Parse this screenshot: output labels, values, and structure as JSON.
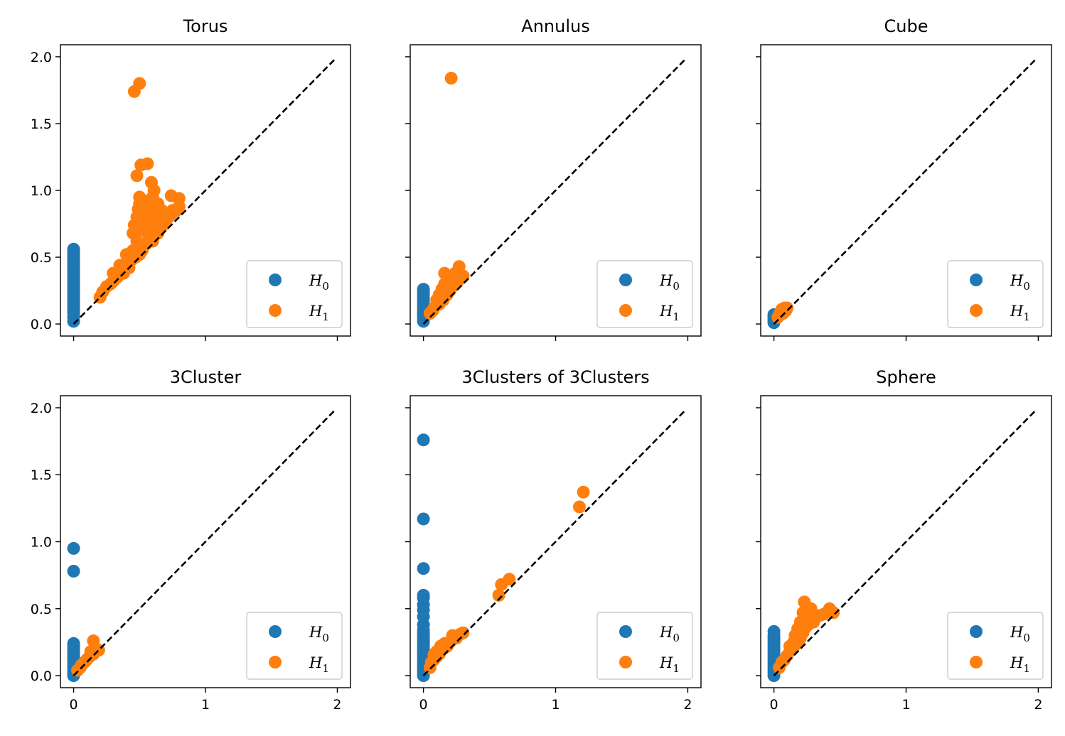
{
  "colors": {
    "h0": "#1f77b4",
    "h1": "#ff7f0e",
    "diagonal": "#000000"
  },
  "shared": {
    "xticks": [
      "0",
      "1",
      "2"
    ],
    "yticks": [
      "0.0",
      "0.5",
      "1.0",
      "1.5",
      "2.0"
    ],
    "legend": {
      "h0": "H",
      "h0_sub": "0",
      "h1": "H",
      "h1_sub": "1",
      "placement": "lower-right"
    }
  },
  "chart_data": [
    {
      "type": "scatter",
      "title": "Torus",
      "xlim": [
        -0.1,
        2.1
      ],
      "ylim": [
        -0.09,
        2.09
      ],
      "series": [
        {
          "name": "H0",
          "points": [
            [
              0,
              0.02
            ],
            [
              0,
              0.05
            ],
            [
              0,
              0.08
            ],
            [
              0,
              0.1
            ],
            [
              0,
              0.12
            ],
            [
              0,
              0.14
            ],
            [
              0,
              0.16
            ],
            [
              0,
              0.18
            ],
            [
              0,
              0.2
            ],
            [
              0,
              0.22
            ],
            [
              0,
              0.24
            ],
            [
              0,
              0.26
            ],
            [
              0,
              0.28
            ],
            [
              0,
              0.3
            ],
            [
              0,
              0.32
            ],
            [
              0,
              0.34
            ],
            [
              0,
              0.36
            ],
            [
              0,
              0.38
            ],
            [
              0,
              0.4
            ],
            [
              0,
              0.42
            ],
            [
              0,
              0.44
            ],
            [
              0,
              0.46
            ],
            [
              0,
              0.48
            ],
            [
              0,
              0.5
            ],
            [
              0,
              0.52
            ],
            [
              0,
              0.54
            ],
            [
              0,
              0.56
            ]
          ]
        },
        {
          "name": "H1",
          "points": [
            [
              0.2,
              0.2
            ],
            [
              0.22,
              0.24
            ],
            [
              0.25,
              0.28
            ],
            [
              0.28,
              0.3
            ],
            [
              0.3,
              0.32
            ],
            [
              0.3,
              0.38
            ],
            [
              0.33,
              0.35
            ],
            [
              0.35,
              0.4
            ],
            [
              0.35,
              0.44
            ],
            [
              0.38,
              0.38
            ],
            [
              0.4,
              0.45
            ],
            [
              0.4,
              0.52
            ],
            [
              0.42,
              0.42
            ],
            [
              0.42,
              0.5
            ],
            [
              0.44,
              0.48
            ],
            [
              0.45,
              0.55
            ],
            [
              0.45,
              0.68
            ],
            [
              0.46,
              0.74
            ],
            [
              0.47,
              0.5
            ],
            [
              0.48,
              0.62
            ],
            [
              0.48,
              0.8
            ],
            [
              0.49,
              0.86
            ],
            [
              0.5,
              0.52
            ],
            [
              0.5,
              0.7
            ],
            [
              0.5,
              0.9
            ],
            [
              0.5,
              0.95
            ],
            [
              0.52,
              0.55
            ],
            [
              0.52,
              0.75
            ],
            [
              0.53,
              0.85
            ],
            [
              0.55,
              0.6
            ],
            [
              0.55,
              0.72
            ],
            [
              0.55,
              0.8
            ],
            [
              0.56,
              0.92
            ],
            [
              0.57,
              0.65
            ],
            [
              0.58,
              0.7
            ],
            [
              0.58,
              0.86
            ],
            [
              0.6,
              0.62
            ],
            [
              0.6,
              0.78
            ],
            [
              0.6,
              0.95
            ],
            [
              0.61,
              1.0
            ],
            [
              0.62,
              0.7
            ],
            [
              0.62,
              0.82
            ],
            [
              0.64,
              0.68
            ],
            [
              0.64,
              0.9
            ],
            [
              0.65,
              0.76
            ],
            [
              0.66,
              0.72
            ],
            [
              0.67,
              0.85
            ],
            [
              0.68,
              0.74
            ],
            [
              0.7,
              0.78
            ],
            [
              0.72,
              0.8
            ],
            [
              0.74,
              0.82
            ],
            [
              0.75,
              0.85
            ],
            [
              0.78,
              0.85
            ],
            [
              0.8,
              0.88
            ],
            [
              0.74,
              0.96
            ],
            [
              0.8,
              0.94
            ],
            [
              0.48,
              1.11
            ],
            [
              0.51,
              1.19
            ],
            [
              0.56,
              1.2
            ],
            [
              0.59,
              1.06
            ],
            [
              0.46,
              1.74
            ],
            [
              0.5,
              1.8
            ]
          ]
        }
      ]
    },
    {
      "type": "scatter",
      "title": "Annulus",
      "xlim": [
        -0.1,
        2.1
      ],
      "ylim": [
        -0.09,
        2.09
      ],
      "series": [
        {
          "name": "H0",
          "points": [
            [
              0,
              0.02
            ],
            [
              0,
              0.04
            ],
            [
              0,
              0.06
            ],
            [
              0,
              0.08
            ],
            [
              0,
              0.1
            ],
            [
              0,
              0.12
            ],
            [
              0,
              0.14
            ],
            [
              0,
              0.16
            ],
            [
              0,
              0.18
            ],
            [
              0,
              0.2
            ],
            [
              0,
              0.22
            ],
            [
              0,
              0.24
            ],
            [
              0,
              0.26
            ]
          ]
        },
        {
          "name": "H1",
          "points": [
            [
              0.05,
              0.08
            ],
            [
              0.07,
              0.1
            ],
            [
              0.08,
              0.12
            ],
            [
              0.1,
              0.14
            ],
            [
              0.1,
              0.18
            ],
            [
              0.12,
              0.15
            ],
            [
              0.12,
              0.22
            ],
            [
              0.14,
              0.2
            ],
            [
              0.14,
              0.26
            ],
            [
              0.15,
              0.18
            ],
            [
              0.16,
              0.3
            ],
            [
              0.16,
              0.38
            ],
            [
              0.18,
              0.22
            ],
            [
              0.18,
              0.32
            ],
            [
              0.2,
              0.25
            ],
            [
              0.2,
              0.36
            ],
            [
              0.22,
              0.28
            ],
            [
              0.22,
              0.34
            ],
            [
              0.24,
              0.3
            ],
            [
              0.24,
              0.38
            ],
            [
              0.26,
              0.32
            ],
            [
              0.27,
              0.43
            ],
            [
              0.28,
              0.35
            ],
            [
              0.3,
              0.36
            ],
            [
              0.21,
              1.84
            ]
          ]
        }
      ]
    },
    {
      "type": "scatter",
      "title": "Cube",
      "xlim": [
        -0.1,
        2.1
      ],
      "ylim": [
        -0.09,
        2.09
      ],
      "series": [
        {
          "name": "H0",
          "points": [
            [
              0,
              0.01
            ],
            [
              0,
              0.02
            ],
            [
              0,
              0.03
            ],
            [
              0,
              0.04
            ],
            [
              0,
              0.05
            ],
            [
              0,
              0.06
            ],
            [
              0,
              0.07
            ]
          ]
        },
        {
          "name": "H1",
          "points": [
            [
              0.03,
              0.05
            ],
            [
              0.04,
              0.07
            ],
            [
              0.05,
              0.09
            ],
            [
              0.06,
              0.11
            ],
            [
              0.07,
              0.08
            ],
            [
              0.08,
              0.12
            ],
            [
              0.09,
              0.1
            ],
            [
              0.1,
              0.12
            ]
          ]
        }
      ]
    },
    {
      "type": "scatter",
      "title": "3Cluster",
      "xlim": [
        -0.1,
        2.1
      ],
      "ylim": [
        -0.09,
        2.09
      ],
      "series": [
        {
          "name": "H0",
          "points": [
            [
              0,
              0.0
            ],
            [
              0,
              0.02
            ],
            [
              0,
              0.04
            ],
            [
              0,
              0.06
            ],
            [
              0,
              0.08
            ],
            [
              0,
              0.1
            ],
            [
              0,
              0.12
            ],
            [
              0,
              0.14
            ],
            [
              0,
              0.16
            ],
            [
              0,
              0.18
            ],
            [
              0,
              0.2
            ],
            [
              0,
              0.22
            ],
            [
              0,
              0.24
            ],
            [
              0,
              0.78
            ],
            [
              0,
              0.95
            ]
          ]
        },
        {
          "name": "H1",
          "points": [
            [
              0.03,
              0.04
            ],
            [
              0.05,
              0.06
            ],
            [
              0.06,
              0.08
            ],
            [
              0.08,
              0.1
            ],
            [
              0.1,
              0.12
            ],
            [
              0.12,
              0.14
            ],
            [
              0.13,
              0.18
            ],
            [
              0.15,
              0.16
            ],
            [
              0.15,
              0.26
            ],
            [
              0.17,
              0.2
            ],
            [
              0.19,
              0.19
            ]
          ]
        }
      ]
    },
    {
      "type": "scatter",
      "title": "3Clusters of 3Clusters",
      "xlim": [
        -0.1,
        2.1
      ],
      "ylim": [
        -0.09,
        2.09
      ],
      "series": [
        {
          "name": "H0",
          "points": [
            [
              0,
              0.0
            ],
            [
              0,
              0.02
            ],
            [
              0,
              0.04
            ],
            [
              0,
              0.06
            ],
            [
              0,
              0.08
            ],
            [
              0,
              0.1
            ],
            [
              0,
              0.12
            ],
            [
              0,
              0.14
            ],
            [
              0,
              0.16
            ],
            [
              0,
              0.18
            ],
            [
              0,
              0.2
            ],
            [
              0,
              0.22
            ],
            [
              0,
              0.24
            ],
            [
              0,
              0.26
            ],
            [
              0,
              0.28
            ],
            [
              0,
              0.3
            ],
            [
              0,
              0.32
            ],
            [
              0,
              0.34
            ],
            [
              0,
              0.38
            ],
            [
              0,
              0.44
            ],
            [
              0,
              0.49
            ],
            [
              0,
              0.53
            ],
            [
              0,
              0.58
            ],
            [
              0,
              0.6
            ],
            [
              0,
              0.8
            ],
            [
              0,
              1.17
            ],
            [
              0,
              1.76
            ]
          ]
        },
        {
          "name": "H1",
          "points": [
            [
              0.05,
              0.06
            ],
            [
              0.06,
              0.1
            ],
            [
              0.08,
              0.12
            ],
            [
              0.08,
              0.16
            ],
            [
              0.1,
              0.14
            ],
            [
              0.1,
              0.18
            ],
            [
              0.12,
              0.16
            ],
            [
              0.13,
              0.22
            ],
            [
              0.15,
              0.2
            ],
            [
              0.16,
              0.24
            ],
            [
              0.18,
              0.22
            ],
            [
              0.2,
              0.25
            ],
            [
              0.22,
              0.3
            ],
            [
              0.25,
              0.28
            ],
            [
              0.28,
              0.31
            ],
            [
              0.3,
              0.32
            ],
            [
              0.57,
              0.6
            ],
            [
              0.59,
              0.68
            ],
            [
              0.65,
              0.72
            ],
            [
              1.18,
              1.26
            ],
            [
              1.21,
              1.37
            ]
          ]
        }
      ]
    },
    {
      "type": "scatter",
      "title": "Sphere",
      "xlim": [
        -0.1,
        2.1
      ],
      "ylim": [
        -0.09,
        2.09
      ],
      "series": [
        {
          "name": "H0",
          "points": [
            [
              0,
              0.0
            ],
            [
              0,
              0.02
            ],
            [
              0,
              0.04
            ],
            [
              0,
              0.06
            ],
            [
              0,
              0.08
            ],
            [
              0,
              0.1
            ],
            [
              0,
              0.12
            ],
            [
              0,
              0.14
            ],
            [
              0,
              0.16
            ],
            [
              0,
              0.18
            ],
            [
              0,
              0.2
            ],
            [
              0,
              0.22
            ],
            [
              0,
              0.24
            ],
            [
              0,
              0.26
            ],
            [
              0,
              0.28
            ],
            [
              0,
              0.3
            ],
            [
              0,
              0.33
            ]
          ]
        },
        {
          "name": "H1",
          "points": [
            [
              0.04,
              0.06
            ],
            [
              0.06,
              0.1
            ],
            [
              0.08,
              0.12
            ],
            [
              0.1,
              0.15
            ],
            [
              0.12,
              0.18
            ],
            [
              0.12,
              0.22
            ],
            [
              0.14,
              0.2
            ],
            [
              0.15,
              0.25
            ],
            [
              0.16,
              0.3
            ],
            [
              0.18,
              0.24
            ],
            [
              0.18,
              0.35
            ],
            [
              0.2,
              0.28
            ],
            [
              0.2,
              0.4
            ],
            [
              0.22,
              0.32
            ],
            [
              0.22,
              0.47
            ],
            [
              0.23,
              0.55
            ],
            [
              0.24,
              0.36
            ],
            [
              0.25,
              0.45
            ],
            [
              0.26,
              0.38
            ],
            [
              0.28,
              0.42
            ],
            [
              0.28,
              0.5
            ],
            [
              0.3,
              0.4
            ],
            [
              0.32,
              0.44
            ],
            [
              0.35,
              0.45
            ],
            [
              0.38,
              0.46
            ],
            [
              0.42,
              0.5
            ],
            [
              0.45,
              0.47
            ]
          ]
        }
      ]
    }
  ]
}
